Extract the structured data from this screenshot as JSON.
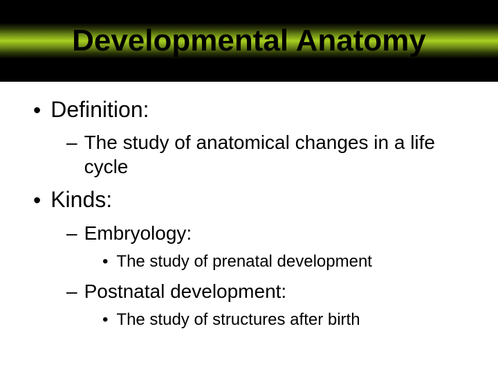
{
  "title": "Developmental Anatomy",
  "colors": {
    "background": "#ffffff",
    "title_text": "#000000",
    "body_text": "#000000",
    "banner_gradient": [
      "#000000",
      "#2a3508",
      "#6a8516",
      "#a8d020",
      "#6a8516",
      "#2a3508",
      "#000000"
    ]
  },
  "typography": {
    "font_family": "Arial",
    "title_fontsize": 44,
    "title_weight": "bold",
    "l1_fontsize": 32,
    "l2_fontsize": 28,
    "l3_fontsize": 24
  },
  "outline": {
    "items": [
      {
        "label": "Definition:",
        "children": [
          {
            "label": "The study of anatomical changes in a life cycle"
          }
        ]
      },
      {
        "label": "Kinds:",
        "children": [
          {
            "label": "Embryology:",
            "children": [
              {
                "label": "The study of prenatal development"
              }
            ]
          },
          {
            "label": "Postnatal development:",
            "children": [
              {
                "label": "The study of structures after birth"
              }
            ]
          }
        ]
      }
    ]
  }
}
